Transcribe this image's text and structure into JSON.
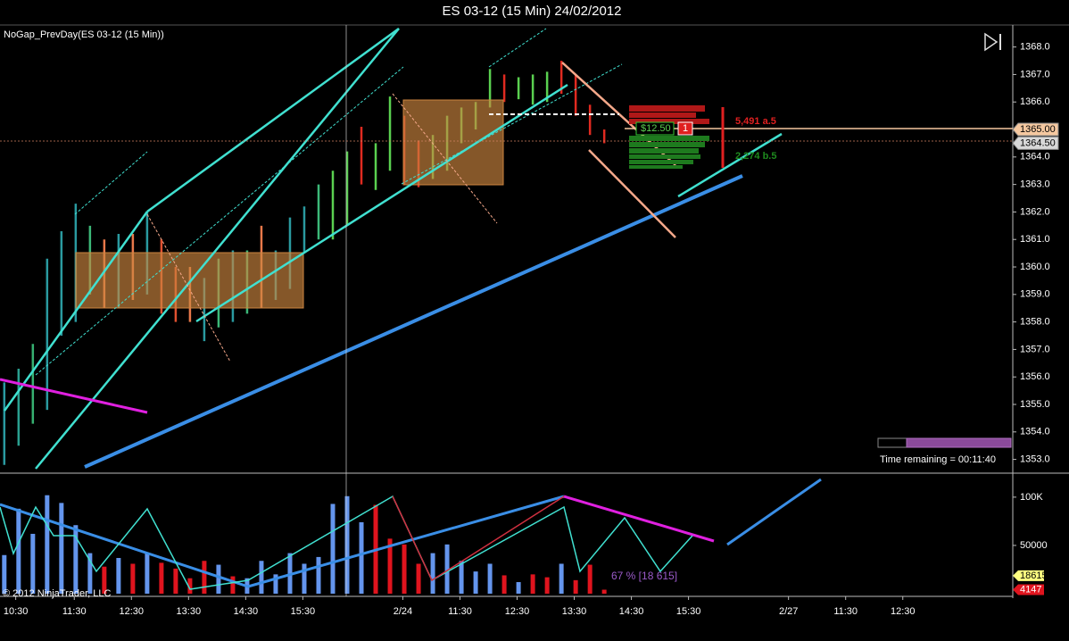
{
  "chart_data": [
    {
      "type": "range",
      "title": "ES 03-12 (15 Min)  24/02/2012",
      "subtitle": "NoGap_PrevDay(ES 03-12 (15 Min))",
      "x": [
        0,
        1,
        2,
        3,
        4,
        5,
        6,
        7,
        8,
        9,
        10,
        11,
        12,
        13,
        14,
        15,
        16,
        17,
        18,
        19,
        20,
        21,
        22,
        23,
        24,
        25,
        26,
        27,
        28,
        29,
        30,
        31,
        32,
        33,
        34,
        35,
        36,
        37,
        38,
        39,
        40,
        41,
        42
      ],
      "low": [
        1352.8,
        1353.5,
        1354.3,
        1354.8,
        1357.5,
        1358.0,
        1359.0,
        1358.5,
        1358.5,
        1358.8,
        1359.0,
        1358.3,
        1358.0,
        1358.0,
        1357.3,
        1357.8,
        1358.0,
        1358.3,
        1358.5,
        1358.8,
        1359.2,
        1360.5,
        1361.0,
        1361.0,
        1361.5,
        1363.0,
        1362.8,
        1363.5,
        1363.0,
        1362.9,
        1363.2,
        1363.5,
        1364.5,
        1365.0,
        1365.8,
        1366.0,
        1366.1,
        1365.9,
        1366.0,
        1366.3,
        1365.5,
        1364.8,
        1364.5
      ],
      "high": [
        1355.8,
        1356.3,
        1357.2,
        1360.3,
        1361.3,
        1362.3,
        1361.5,
        1361.0,
        1361.2,
        1361.2,
        1362.0,
        1361.0,
        1360.0,
        1360.0,
        1359.6,
        1360.3,
        1360.6,
        1360.6,
        1361.5,
        1360.6,
        1361.8,
        1362.2,
        1363.0,
        1363.5,
        1364.2,
        1365.1,
        1364.5,
        1366.2,
        1365.5,
        1364.6,
        1364.8,
        1365.5,
        1365.8,
        1366.0,
        1367.2,
        1367.0,
        1366.9,
        1367.0,
        1367.1,
        1367.5,
        1367.0,
        1365.9,
        1365.0
      ],
      "colors": [
        "#2a9aa0",
        "#2aa090",
        "#36b070",
        "#2a9aa0",
        "#2a9aa0",
        "#2a9aa0",
        "#3cb878",
        "#e8784a",
        "#2a9aa0",
        "#e8784a",
        "#2a9aa0",
        "#e05030",
        "#e05030",
        "#e8784a",
        "#2a9aa0",
        "#3cb878",
        "#2a9aa0",
        "#3cb878",
        "#e8784a",
        "#2a9aa0",
        "#2a9aa0",
        "#2a9aa0",
        "#3cb878",
        "#5ad050",
        "#5ad050",
        "#e02a20",
        "#5ad050",
        "#5ad050",
        "#e02a20",
        "#e02a20",
        "#5ad050",
        "#5ad050",
        "#5ad050",
        "#5ad050",
        "#5ad050",
        "#e02a20",
        "#5ad050",
        "#5ad050",
        "#5ad050",
        "#e02a20",
        "#e02a20",
        "#e02a20",
        "#e02a20"
      ],
      "xlim": [
        -0.3,
        70.6
      ],
      "ylim": [
        1352.5,
        1368.8
      ],
      "yticks": [
        {
          "value": 1353,
          "label": "1353.0"
        },
        {
          "value": 1354,
          "label": "1354.0"
        },
        {
          "value": 1355,
          "label": "1355.0"
        },
        {
          "value": 1356,
          "label": "1356.0"
        },
        {
          "value": 1357,
          "label": "1357.0"
        },
        {
          "value": 1358,
          "label": "1358.0"
        },
        {
          "value": 1359,
          "label": "1359.0"
        },
        {
          "value": 1360,
          "label": "1360.0"
        },
        {
          "value": 1361,
          "label": "1361.0"
        },
        {
          "value": 1362,
          "label": "1362.0"
        },
        {
          "value": 1363,
          "label": "1363.0"
        },
        {
          "value": 1364,
          "label": "1364.0"
        },
        {
          "value": 1365,
          "label": "1365.0"
        },
        {
          "value": 1366,
          "label": "1366.0"
        },
        {
          "value": 1367,
          "label": "1367.0"
        },
        {
          "value": 1368,
          "label": "1368.0"
        }
      ],
      "price_labels": [
        {
          "value": 1365,
          "label": "1365.00",
          "color": "#f5c8a0"
        },
        {
          "value": 1364.5,
          "label": "1364.50",
          "color": "#d8d8d8"
        }
      ],
      "pnl": "$12.50",
      "position": "1",
      "ask": "5,491 a.5",
      "bid": "2,274 b.5",
      "time_remaining": "Time remaining = 00:11:40"
    },
    {
      "type": "bar",
      "x": [
        0,
        1,
        2,
        3,
        4,
        5,
        6,
        7,
        8,
        9,
        10,
        11,
        12,
        13,
        14,
        15,
        16,
        17,
        18,
        19,
        20,
        21,
        22,
        23,
        24,
        25,
        26,
        27,
        28,
        29,
        30,
        31,
        32,
        33,
        34,
        35,
        36,
        37,
        38,
        39,
        40,
        41,
        42
      ],
      "values": [
        40000,
        88000,
        62000,
        102000,
        94000,
        71000,
        42000,
        28000,
        37000,
        31000,
        42000,
        32000,
        26000,
        16000,
        34000,
        30000,
        18000,
        16000,
        34000,
        20000,
        42000,
        31000,
        38000,
        93000,
        101000,
        74000,
        92000,
        57000,
        51000,
        31000,
        42000,
        51000,
        34000,
        23000,
        31000,
        19000,
        12000,
        20000,
        17000,
        31000,
        14000,
        30000,
        4147
      ],
      "colors": [
        "#6495ed",
        "#6495ed",
        "#6495ed",
        "#6495ed",
        "#6495ed",
        "#6495ed",
        "#6495ed",
        "#e0141e",
        "#6495ed",
        "#e0141e",
        "#6495ed",
        "#e0141e",
        "#e0141e",
        "#e0141e",
        "#e0141e",
        "#6495ed",
        "#e0141e",
        "#6495ed",
        "#6495ed",
        "#6495ed",
        "#6495ed",
        "#6495ed",
        "#6495ed",
        "#6495ed",
        "#6495ed",
        "#6495ed",
        "#e0141e",
        "#e0141e",
        "#e0141e",
        "#e0141e",
        "#6495ed",
        "#6495ed",
        "#6495ed",
        "#6495ed",
        "#6495ed",
        "#e0141e",
        "#6495ed",
        "#e0141e",
        "#e0141e",
        "#6495ed",
        "#e0141e",
        "#e0141e",
        "#e0141e"
      ],
      "xlim": [
        -0.3,
        70.6
      ],
      "ylim": [
        0,
        123000
      ],
      "yticks": [
        {
          "value": 50000,
          "label": "50000"
        },
        {
          "value": 100000,
          "label": "100K"
        }
      ],
      "xticks": [
        {
          "value": 0.8,
          "label": "10:30"
        },
        {
          "value": 4.9,
          "label": "11:30"
        },
        {
          "value": 8.9,
          "label": "12:30"
        },
        {
          "value": 12.9,
          "label": "13:30"
        },
        {
          "value": 16.9,
          "label": "14:30"
        },
        {
          "value": 20.9,
          "label": "15:30"
        },
        {
          "value": 27.9,
          "label": "2/24"
        },
        {
          "value": 31.9,
          "label": "11:30"
        },
        {
          "value": 35.9,
          "label": "12:30"
        },
        {
          "value": 39.9,
          "label": "13:30"
        },
        {
          "value": 43.9,
          "label": "14:30"
        },
        {
          "value": 47.9,
          "label": "15:30"
        },
        {
          "value": 54.9,
          "label": "2/27"
        },
        {
          "value": 58.9,
          "label": "11:30"
        },
        {
          "value": 62.9,
          "label": "12:30"
        }
      ],
      "value_markers": [
        {
          "value": 18615,
          "label": "18615",
          "color": "#ffff80"
        },
        {
          "value": 4147,
          "label": "4147",
          "color": "#e0141e"
        }
      ],
      "annotation": "67 % [18 615]",
      "copyright": "© 2012 NinjaTrader, LLC"
    }
  ]
}
